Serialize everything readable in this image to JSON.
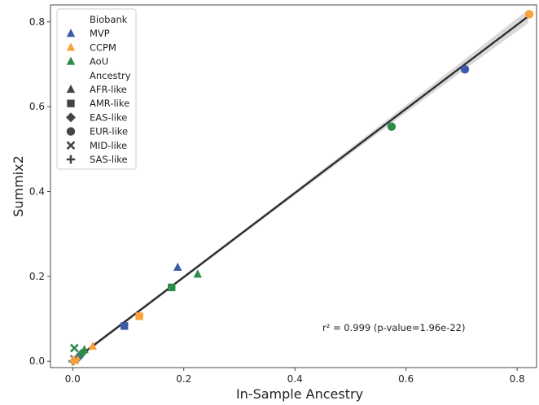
{
  "chart_data": {
    "type": "scatter",
    "xlabel": "In-Sample Ancestry",
    "ylabel": "Summix2",
    "xlim": [
      -0.04,
      0.835
    ],
    "ylim": [
      -0.015,
      0.84
    ],
    "xticks": [
      "0.0",
      "0.2",
      "0.4",
      "0.6",
      "0.8"
    ],
    "xtick_values": [
      0.0,
      0.2,
      0.4,
      0.6,
      0.8
    ],
    "yticks": [
      "0.0",
      "0.2",
      "0.4",
      "0.6",
      "0.8"
    ],
    "ytick_values": [
      0.0,
      0.2,
      0.4,
      0.6,
      0.8
    ],
    "grid": false,
    "legend_position": "top-left",
    "legend": {
      "biobank_title": "Biobank",
      "biobanks": [
        {
          "name": "MVP",
          "color": "#3b5ba9"
        },
        {
          "name": "CCPM",
          "color": "#f9a23c"
        },
        {
          "name": "AoU",
          "color": "#2e8b4a"
        }
      ],
      "ancestry_title": "Ancestry",
      "ancestries": [
        {
          "name": "AFR-like",
          "marker": "triangle"
        },
        {
          "name": "AMR-like",
          "marker": "square"
        },
        {
          "name": "EAS-like",
          "marker": "diamond"
        },
        {
          "name": "EUR-like",
          "marker": "circle"
        },
        {
          "name": "MID-like",
          "marker": "x"
        },
        {
          "name": "SAS-like",
          "marker": "plus"
        }
      ]
    },
    "fit_line": {
      "x": [
        0.0,
        0.82
      ],
      "y": [
        0.0,
        0.813
      ],
      "color": "#2b2b2b",
      "band_color": "#d9d9d9"
    },
    "annotation": "r² = 0.999 (p-value=1.96e-22)",
    "points": [
      {
        "biobank": "CCPM",
        "ancestry": "EUR-like",
        "x": 0.822,
        "y": 0.818
      },
      {
        "biobank": "MVP",
        "ancestry": "EUR-like",
        "x": 0.706,
        "y": 0.688
      },
      {
        "biobank": "AoU",
        "ancestry": "EUR-like",
        "x": 0.574,
        "y": 0.553
      },
      {
        "biobank": "AoU",
        "ancestry": "AFR-like",
        "x": 0.225,
        "y": 0.205
      },
      {
        "biobank": "MVP",
        "ancestry": "AFR-like",
        "x": 0.189,
        "y": 0.221
      },
      {
        "biobank": "AoU",
        "ancestry": "AMR-like",
        "x": 0.178,
        "y": 0.174
      },
      {
        "biobank": "CCPM",
        "ancestry": "AMR-like",
        "x": 0.12,
        "y": 0.106
      },
      {
        "biobank": "MVP",
        "ancestry": "AMR-like",
        "x": 0.093,
        "y": 0.083
      },
      {
        "biobank": "CCPM",
        "ancestry": "AFR-like",
        "x": 0.036,
        "y": 0.035
      },
      {
        "biobank": "AoU",
        "ancestry": "AFR-like",
        "x": 0.021,
        "y": 0.027
      },
      {
        "biobank": "AoU",
        "ancestry": "MID-like",
        "x": 0.003,
        "y": 0.031
      },
      {
        "biobank": "AoU",
        "ancestry": "EAS-like",
        "x": 0.016,
        "y": 0.018
      },
      {
        "biobank": "MVP",
        "ancestry": "EAS-like",
        "x": 0.011,
        "y": 0.01
      },
      {
        "biobank": "AoU",
        "ancestry": "SAS-like",
        "x": 0.013,
        "y": 0.014
      },
      {
        "biobank": "CCPM",
        "ancestry": "EAS-like",
        "x": 0.005,
        "y": 0.004
      },
      {
        "biobank": "MVP",
        "ancestry": "MID-like",
        "x": 0.003,
        "y": 0.005
      },
      {
        "biobank": "MVP",
        "ancestry": "SAS-like",
        "x": 0.0,
        "y": 0.0
      },
      {
        "biobank": "CCPM",
        "ancestry": "SAS-like",
        "x": 0.002,
        "y": 0.001
      },
      {
        "biobank": "CCPM",
        "ancestry": "MID-like",
        "x": 0.004,
        "y": 0.002
      }
    ]
  }
}
